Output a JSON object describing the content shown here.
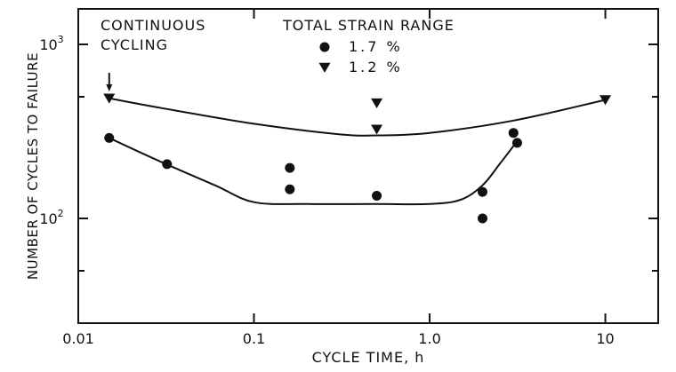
{
  "chart_data": {
    "type": "scatter",
    "title": "",
    "xlabel": "CYCLE TIME, h",
    "ylabel": "NUMBER OF CYCLES TO FAILURE",
    "x_scale": "log",
    "y_scale": "log",
    "xlim": [
      0.01,
      20
    ],
    "ylim": [
      25,
      1600
    ],
    "x_ticks": [
      {
        "value": 0.01,
        "label": "0.01"
      },
      {
        "value": 0.1,
        "label": "0.1"
      },
      {
        "value": 1.0,
        "label": "1.0"
      },
      {
        "value": 10,
        "label": "10"
      }
    ],
    "y_ticks": [
      {
        "value": 100,
        "base": "10",
        "exp": "2"
      },
      {
        "value": 1000,
        "base": "10",
        "exp": "3"
      }
    ],
    "y_minor_ticks": [
      50,
      500
    ],
    "legend": {
      "title": "TOTAL STRAIN RANGE",
      "placement": "top-center"
    },
    "annotations": [
      {
        "line1": "CONTINUOUS",
        "line2": "CYCLING",
        "x": 0.015,
        "y": 1000
      }
    ],
    "series": [
      {
        "name": "1.7 %",
        "marker": "circle",
        "points": [
          {
            "x": 0.015,
            "y": 290
          },
          {
            "x": 0.032,
            "y": 205
          },
          {
            "x": 0.16,
            "y": 195
          },
          {
            "x": 0.16,
            "y": 147
          },
          {
            "x": 0.5,
            "y": 135
          },
          {
            "x": 2.0,
            "y": 142
          },
          {
            "x": 2.0,
            "y": 100
          },
          {
            "x": 3.0,
            "y": 310
          },
          {
            "x": 3.15,
            "y": 272
          }
        ],
        "curve": [
          {
            "x": 0.015,
            "y": 290
          },
          {
            "x": 0.03,
            "y": 210
          },
          {
            "x": 0.06,
            "y": 155
          },
          {
            "x": 0.1,
            "y": 124
          },
          {
            "x": 0.2,
            "y": 121
          },
          {
            "x": 0.5,
            "y": 121
          },
          {
            "x": 1.0,
            "y": 121
          },
          {
            "x": 1.5,
            "y": 128
          },
          {
            "x": 2.0,
            "y": 155
          },
          {
            "x": 2.5,
            "y": 205
          },
          {
            "x": 3.1,
            "y": 272
          }
        ]
      },
      {
        "name": "1.2 %",
        "marker": "triangle-down",
        "points": [
          {
            "x": 0.015,
            "y": 490
          },
          {
            "x": 0.5,
            "y": 460
          },
          {
            "x": 0.5,
            "y": 325
          },
          {
            "x": 10,
            "y": 480
          }
        ],
        "curve": [
          {
            "x": 0.015,
            "y": 490
          },
          {
            "x": 0.03,
            "y": 430
          },
          {
            "x": 0.1,
            "y": 350
          },
          {
            "x": 0.3,
            "y": 305
          },
          {
            "x": 0.5,
            "y": 300
          },
          {
            "x": 1.0,
            "y": 310
          },
          {
            "x": 3.0,
            "y": 365
          },
          {
            "x": 10,
            "y": 480
          }
        ]
      }
    ]
  }
}
